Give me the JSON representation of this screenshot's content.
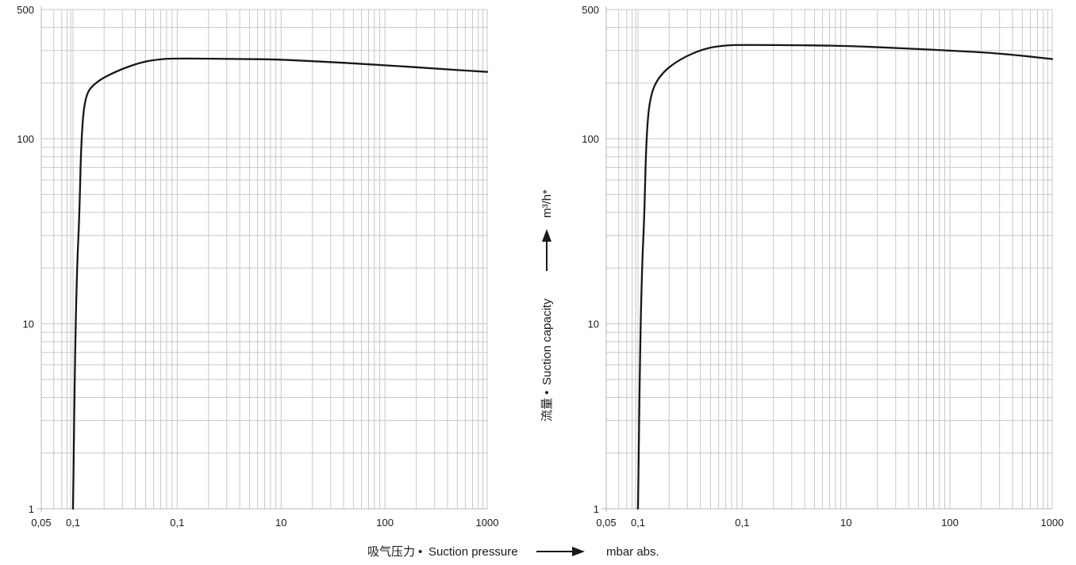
{
  "colors": {
    "curve": "#1f1414",
    "grid": "#c8c8c8",
    "text": "#1a1a1a"
  },
  "axis_labels": {
    "x_cn": "吸气压力",
    "x_bullet": "•",
    "x_en": "Suction pressure",
    "x_unit": "mbar abs.",
    "y_cn": "流量",
    "y_bullet": "•",
    "y_en": "Suction capacity",
    "y_unit": "m³/h*"
  },
  "chart_data": [
    {
      "type": "line",
      "title": "",
      "xlabel": "吸气压力 • Suction pressure → mbar abs.",
      "ylabel": "",
      "x_scale": "log",
      "y_scale": "log",
      "grid": true,
      "x_tick_labels": [
        "0,05",
        "0,1",
        "0,1",
        "10",
        "100",
        "1000"
      ],
      "y_tick_labels": [
        "1",
        "10",
        "100",
        "500"
      ],
      "ylim": [
        1,
        500
      ],
      "series": [
        {
          "x": [
            0.1,
            0.105,
            0.11,
            0.115,
            0.12,
            0.13,
            0.16,
            0.25,
            0.45,
            0.7,
            1,
            5,
            10,
            30,
            100,
            300,
            1000
          ],
          "y": [
            1,
            8,
            22,
            38,
            100,
            170,
            200,
            230,
            260,
            270,
            272,
            270,
            268,
            260,
            250,
            240,
            230
          ]
        }
      ]
    },
    {
      "type": "line",
      "title": "",
      "xlabel": "吸气压力 • Suction pressure → mbar abs.",
      "ylabel": "流量 • Suction capacity → m³/h*",
      "x_scale": "log",
      "y_scale": "log",
      "grid": true,
      "x_tick_labels": [
        "0,05",
        "0,1",
        "0,1",
        "10",
        "100",
        "1000"
      ],
      "y_tick_labels": [
        "1",
        "10",
        "100",
        "500"
      ],
      "ylim": [
        1,
        500
      ],
      "series": [
        {
          "x": [
            0.1,
            0.105,
            0.11,
            0.115,
            0.12,
            0.13,
            0.16,
            0.25,
            0.45,
            0.7,
            1,
            5,
            10,
            30,
            100,
            300,
            1000
          ],
          "y": [
            1,
            8,
            22,
            38,
            100,
            170,
            220,
            270,
            310,
            320,
            322,
            320,
            318,
            310,
            300,
            290,
            270
          ]
        }
      ]
    }
  ]
}
